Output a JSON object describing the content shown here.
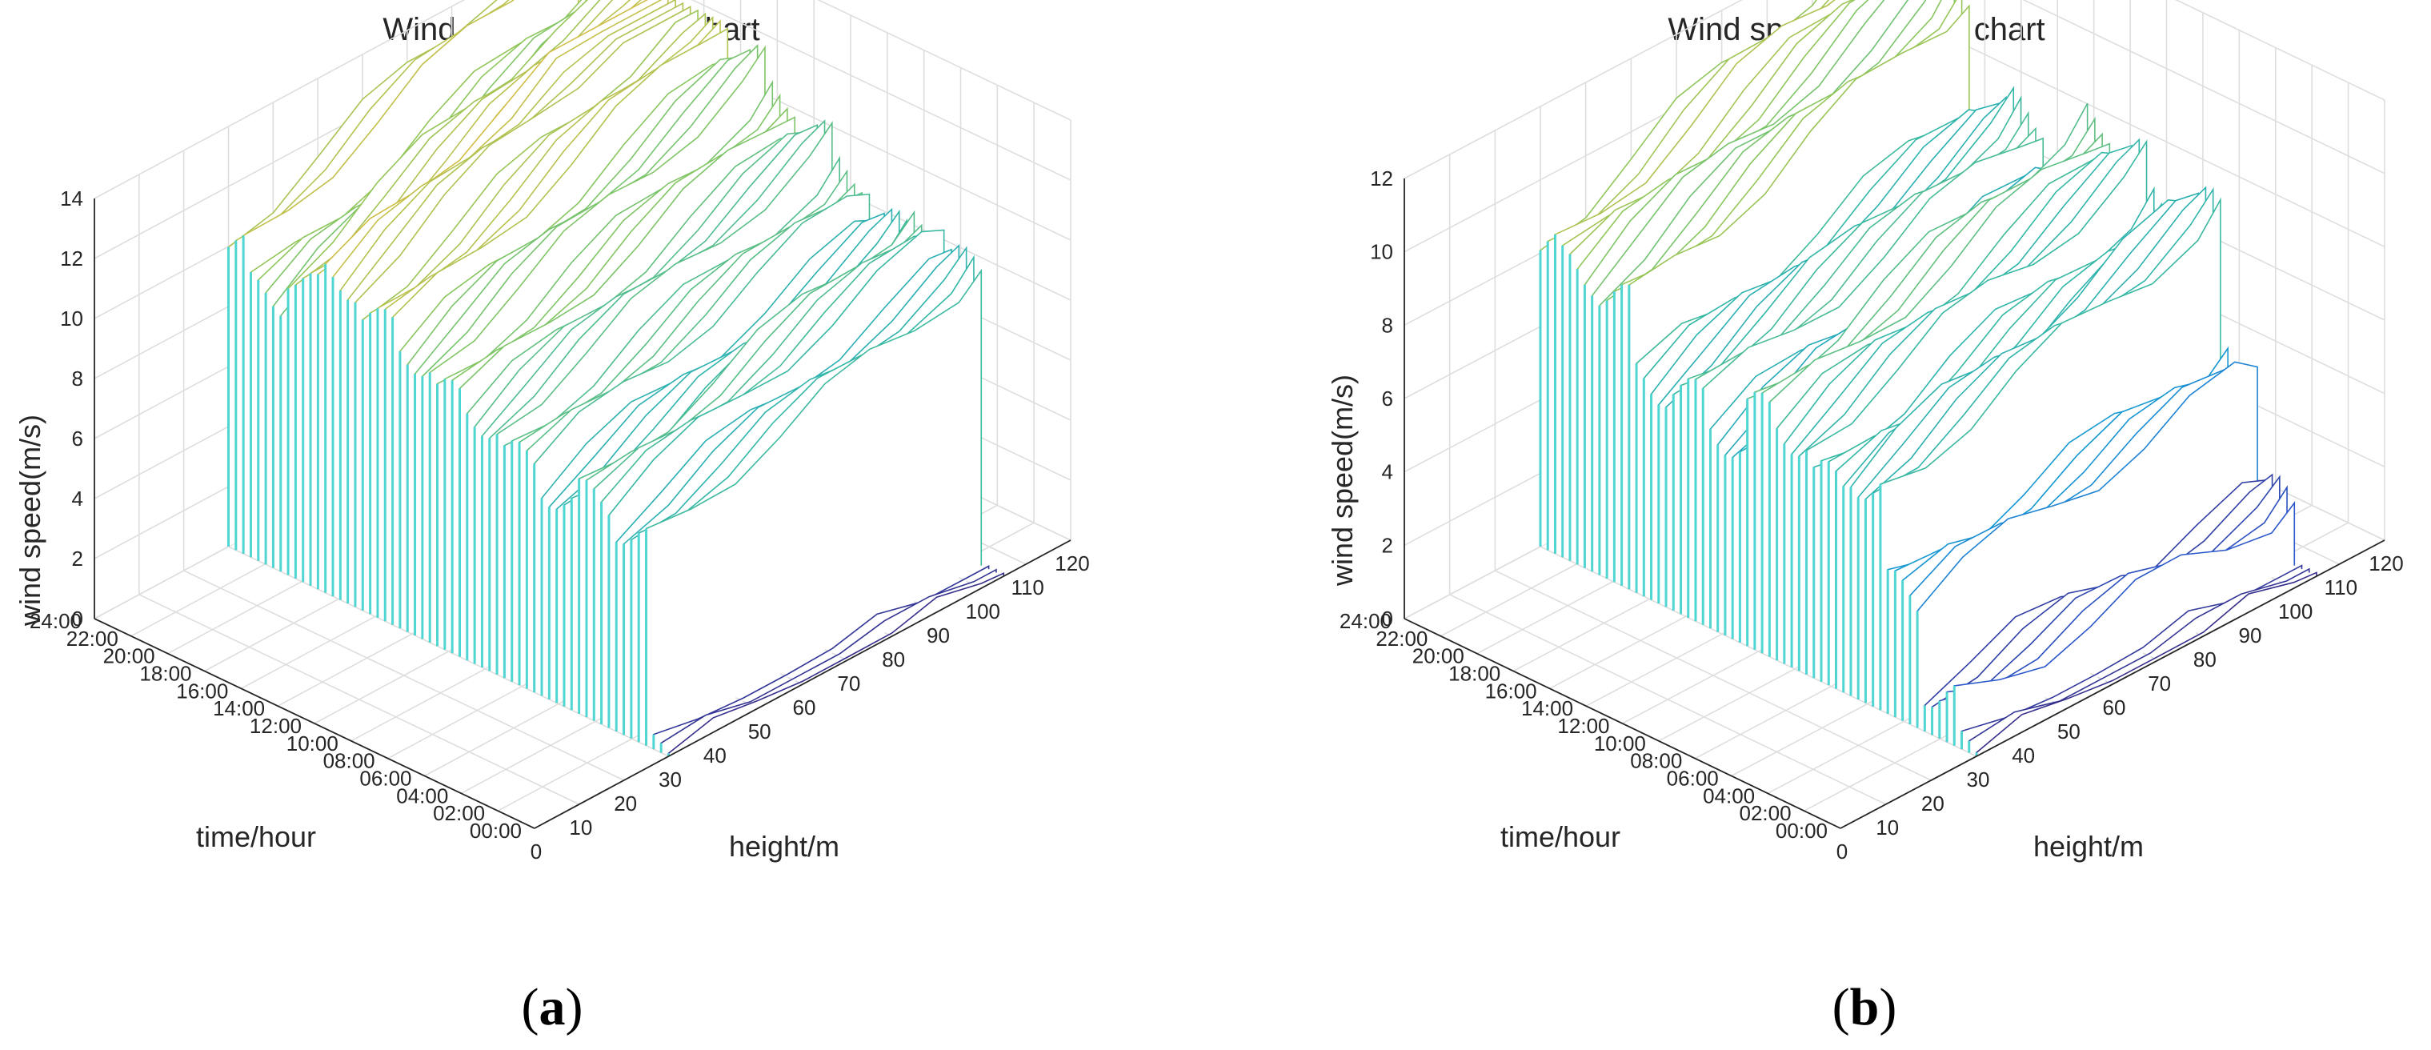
{
  "chart_data": [
    {
      "type": "waterfall3d",
      "panel": "a",
      "title": "Wind speed waterfall chart",
      "xlabel": "height/m",
      "ylabel": "time/hour",
      "zlabel": "wind speed(m/s)",
      "xticks": [
        "0",
        "10",
        "20",
        "30",
        "40",
        "50",
        "60",
        "70",
        "80",
        "90",
        "100",
        "110",
        "120"
      ],
      "yticks": [
        "00:00",
        "02:00",
        "04:00",
        "06:00",
        "08:00",
        "10:00",
        "12:00",
        "14:00",
        "16:00",
        "18:00",
        "20:00",
        "22:00",
        "24:00"
      ],
      "zticks": [
        "0",
        "2",
        "4",
        "6",
        "8",
        "10",
        "12",
        "14"
      ],
      "xlim": [
        0,
        120
      ],
      "ylim": [
        0,
        24
      ],
      "zlim": [
        0,
        14
      ],
      "heights": [
        30,
        40,
        50,
        60,
        70,
        80,
        90,
        100,
        105
      ],
      "colormap": "parula",
      "series_profile": [
        0.0,
        6.8,
        7.4,
        6.9,
        7.6,
        8.2,
        8.6,
        9.2,
        9.9,
        10.6,
        10.0,
        9.0,
        10.2
      ],
      "caption_letter": "a"
    },
    {
      "type": "waterfall3d",
      "panel": "b",
      "title": "Wind speed waterfall chart",
      "xlabel": "height/m",
      "ylabel": "time/hour",
      "zlabel": "wind speed(m/s)",
      "xticks": [
        "0",
        "10",
        "20",
        "30",
        "40",
        "50",
        "60",
        "70",
        "80",
        "90",
        "100",
        "110",
        "120"
      ],
      "yticks": [
        "00:00",
        "02:00",
        "04:00",
        "06:00",
        "08:00",
        "10:00",
        "12:00",
        "14:00",
        "16:00",
        "18:00",
        "20:00",
        "22:00",
        "24:00"
      ],
      "zticks": [
        "0",
        "2",
        "4",
        "6",
        "8",
        "10",
        "12"
      ],
      "xlim": [
        0,
        120
      ],
      "ylim": [
        0,
        24
      ],
      "zlim": [
        0,
        12
      ],
      "heights": [
        30,
        40,
        50,
        60,
        70,
        80,
        90,
        100,
        105
      ],
      "colormap": "parula",
      "series_profile": [
        0.0,
        1.2,
        3.5,
        6.0,
        5.6,
        6.3,
        6.6,
        5.4,
        6.1,
        5.9,
        7.8,
        8.0,
        8.3
      ],
      "caption_letter": "b"
    }
  ],
  "captions": {
    "a": {
      "open": "(",
      "letter": "a",
      "close": ")"
    },
    "b": {
      "open": "(",
      "letter": "b",
      "close": ")"
    }
  }
}
